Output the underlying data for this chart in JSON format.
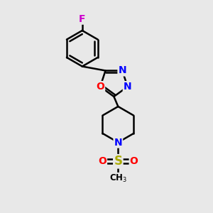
{
  "background_color": "#e8e8e8",
  "atom_colors": {
    "C": "#000000",
    "N": "#0000ff",
    "O": "#ff0000",
    "F": "#cc00cc",
    "S": "#aaaa00"
  },
  "bond_color": "#000000",
  "bond_width": 1.8,
  "font_size_atoms": 10,
  "fig_width": 3.0,
  "fig_height": 3.0,
  "dpi": 100
}
